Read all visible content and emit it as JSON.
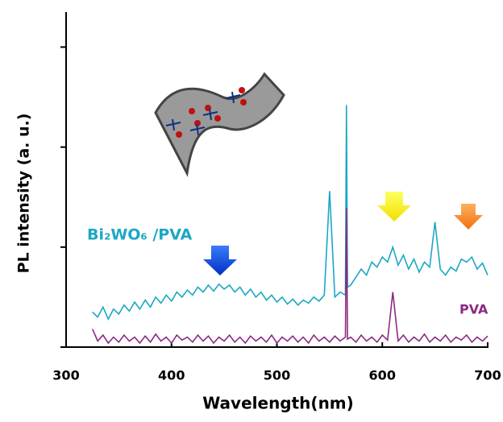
{
  "chart_data": {
    "type": "line",
    "x_label": "Wavelength(nm)",
    "y_label": "PL intensity (a. u.)",
    "xlim": [
      300,
      700
    ],
    "xticks": [
      300,
      400,
      500,
      600,
      700
    ],
    "ylim": [
      0,
      3.35
    ],
    "yticks": [
      0,
      1,
      2,
      3
    ],
    "x": [
      325,
      330,
      335,
      340,
      345,
      350,
      355,
      360,
      365,
      370,
      375,
      380,
      385,
      390,
      395,
      400,
      405,
      410,
      415,
      420,
      425,
      430,
      435,
      440,
      445,
      450,
      455,
      460,
      465,
      470,
      475,
      480,
      485,
      490,
      495,
      500,
      505,
      510,
      515,
      520,
      525,
      530,
      535,
      540,
      545,
      550,
      555,
      560,
      565,
      566,
      567,
      570,
      575,
      580,
      585,
      590,
      595,
      600,
      605,
      610,
      615,
      620,
      625,
      630,
      635,
      640,
      645,
      650,
      655,
      660,
      665,
      670,
      675,
      680,
      685,
      690,
      695,
      700
    ],
    "series": [
      {
        "name": "Bi₂WO₆ /PVA",
        "color": "#1ba7c4",
        "values": [
          0.35,
          0.3,
          0.4,
          0.28,
          0.38,
          0.33,
          0.42,
          0.36,
          0.45,
          0.38,
          0.47,
          0.4,
          0.5,
          0.44,
          0.52,
          0.46,
          0.55,
          0.5,
          0.57,
          0.52,
          0.6,
          0.55,
          0.62,
          0.56,
          0.63,
          0.58,
          0.62,
          0.55,
          0.6,
          0.52,
          0.58,
          0.5,
          0.55,
          0.47,
          0.52,
          0.45,
          0.5,
          0.43,
          0.48,
          0.42,
          0.47,
          0.44,
          0.5,
          0.46,
          0.52,
          1.56,
          0.5,
          0.55,
          0.52,
          2.42,
          0.6,
          0.62,
          0.7,
          0.78,
          0.72,
          0.85,
          0.8,
          0.9,
          0.85,
          1.0,
          0.82,
          0.92,
          0.78,
          0.88,
          0.75,
          0.85,
          0.8,
          1.25,
          0.78,
          0.72,
          0.8,
          0.76,
          0.88,
          0.85,
          0.9,
          0.78,
          0.84,
          0.72
        ]
      },
      {
        "name": "PVA",
        "color": "#8b2a84",
        "values": [
          0.18,
          0.06,
          0.12,
          0.04,
          0.1,
          0.05,
          0.12,
          0.06,
          0.1,
          0.04,
          0.11,
          0.05,
          0.13,
          0.06,
          0.1,
          0.04,
          0.12,
          0.07,
          0.1,
          0.05,
          0.12,
          0.06,
          0.11,
          0.04,
          0.1,
          0.06,
          0.12,
          0.05,
          0.1,
          0.04,
          0.11,
          0.06,
          0.1,
          0.05,
          0.12,
          0.04,
          0.1,
          0.06,
          0.11,
          0.05,
          0.1,
          0.04,
          0.12,
          0.06,
          0.1,
          0.05,
          0.11,
          0.06,
          0.1,
          1.39,
          0.08,
          0.1,
          0.05,
          0.12,
          0.06,
          0.1,
          0.05,
          0.12,
          0.07,
          0.55,
          0.06,
          0.12,
          0.05,
          0.1,
          0.06,
          0.13,
          0.05,
          0.1,
          0.06,
          0.12,
          0.05,
          0.1,
          0.07,
          0.12,
          0.05,
          0.1,
          0.06,
          0.11
        ]
      }
    ]
  }
}
